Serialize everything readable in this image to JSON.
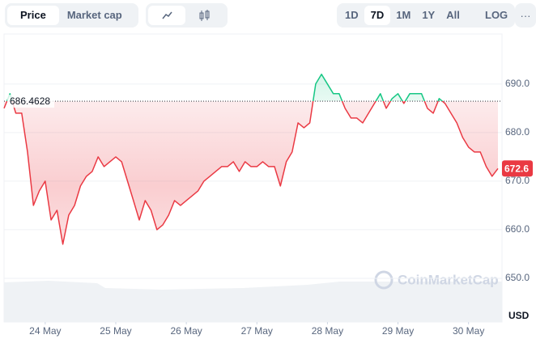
{
  "toolbar": {
    "tabs": [
      "Price",
      "Market cap"
    ],
    "ranges": [
      "1D",
      "7D",
      "1M",
      "1Y",
      "All"
    ],
    "log": "LOG"
  },
  "watermark": "CoinMarketCap",
  "chart_data": {
    "type": "line",
    "y_unit": "USD",
    "values": [
      685,
      688,
      684,
      684,
      676,
      665,
      668,
      670,
      662,
      664,
      657,
      663,
      665,
      669,
      671,
      672,
      675,
      673,
      674,
      675,
      674,
      670,
      666,
      662,
      666,
      664,
      660,
      661,
      663,
      666,
      665,
      666,
      667,
      668,
      670,
      671,
      672,
      673,
      673,
      674,
      672,
      674,
      673,
      673,
      674,
      673,
      673,
      669,
      674,
      676,
      682,
      681,
      682,
      690,
      692,
      690,
      688,
      688,
      685,
      683,
      683,
      682,
      684,
      686,
      688,
      685,
      687,
      688,
      686,
      688,
      688,
      688,
      685,
      684,
      687,
      686,
      684,
      682,
      679,
      677,
      676,
      676,
      673,
      671,
      672.6
    ],
    "xlim": [
      0,
      84
    ],
    "xticks": [
      {
        "value": 7,
        "label": "24 May"
      },
      {
        "value": 19,
        "label": "25 May"
      },
      {
        "value": 31,
        "label": "26 May"
      },
      {
        "value": 43,
        "label": "27 May"
      },
      {
        "value": 55,
        "label": "28 May"
      },
      {
        "value": 67,
        "label": "29 May"
      },
      {
        "value": 79,
        "label": "30 May"
      }
    ],
    "ylim": [
      641,
      700.3
    ],
    "yticks": [
      {
        "value": 650,
        "label": "650.0"
      },
      {
        "value": 660,
        "label": "660.0"
      },
      {
        "value": 670,
        "label": "670.0"
      },
      {
        "value": 680,
        "label": "680.0"
      },
      {
        "value": 690,
        "label": "690.0"
      }
    ],
    "reference": 686.4628,
    "color_up": "#16c784",
    "color_down": "#ea3943",
    "grid": true
  }
}
